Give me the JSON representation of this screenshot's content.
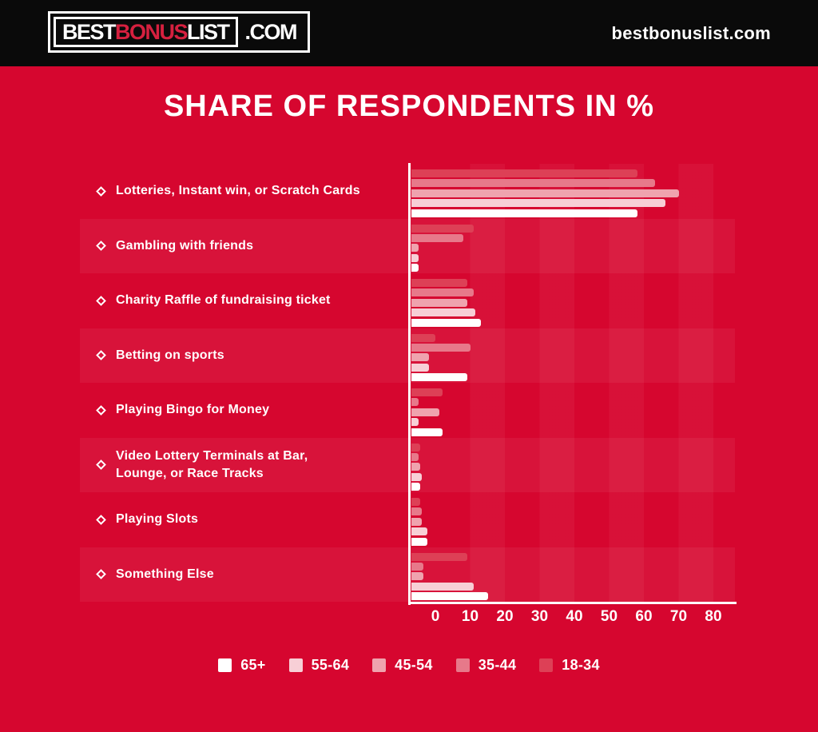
{
  "header": {
    "logo": {
      "best": "BEST",
      "bonus": "BONUS",
      "list": "LIST",
      "com": ".COM"
    },
    "site_text": "bestbonuslist.com"
  },
  "title": "SHARE OF RESPONDENTS IN %",
  "colors": {
    "background_red": "#D6062F",
    "header_black": "#0a0a0a",
    "logo_red": "#D6203F",
    "text_white": "#FFFFFF"
  },
  "chart_data": {
    "type": "bar",
    "orientation": "horizontal",
    "title": "SHARE OF RESPONDENTS IN %",
    "unit": "%",
    "grid": "subtle vertical stripes",
    "categories": [
      "Lotteries, Instant win, or Scratch Cards",
      "Gambling with friends",
      "Charity Raffle of fundraising ticket",
      "Betting on sports",
      "Playing Bingo for Money",
      "Video Lottery Terminals at Bar,\nLounge, or Race Tracks",
      "Playing Slots",
      "Something Else"
    ],
    "row_order_top_to_bottom": [
      "18-34",
      "35-44",
      "45-54",
      "55-64",
      "65+"
    ],
    "series": [
      {
        "name": "18-34",
        "color": "#DD4056",
        "values": [
          65,
          18,
          16,
          7,
          9,
          2.5,
          2.5,
          16
        ]
      },
      {
        "name": "35-44",
        "color": "#E7798A",
        "values": [
          70,
          15,
          18,
          17,
          2,
          2,
          3,
          3.5
        ]
      },
      {
        "name": "45-54",
        "color": "#EFA3AE",
        "values": [
          77,
          2,
          16,
          5,
          8,
          2.5,
          3,
          3.5
        ]
      },
      {
        "name": "55-64",
        "color": "#F7CFD6",
        "values": [
          73,
          2,
          18.5,
          5,
          2,
          3,
          4.5,
          18
        ]
      },
      {
        "name": "65+",
        "color": "#FFFFFF",
        "values": [
          65,
          2,
          20,
          16,
          9,
          2.5,
          4.5,
          22
        ]
      }
    ],
    "x_ticks": [
      0,
      10,
      20,
      30,
      40,
      50,
      60,
      70,
      80
    ],
    "xlim": [
      0,
      86
    ],
    "legend_position": "bottom"
  },
  "legend": {
    "items": [
      {
        "label": "65+",
        "color": "#FFFFFF"
      },
      {
        "label": "55-64",
        "color": "#F7CFD6"
      },
      {
        "label": "45-54",
        "color": "#EFA3AE"
      },
      {
        "label": "35-44",
        "color": "#E7798A"
      },
      {
        "label": "18-34",
        "color": "#DD4056"
      }
    ]
  }
}
